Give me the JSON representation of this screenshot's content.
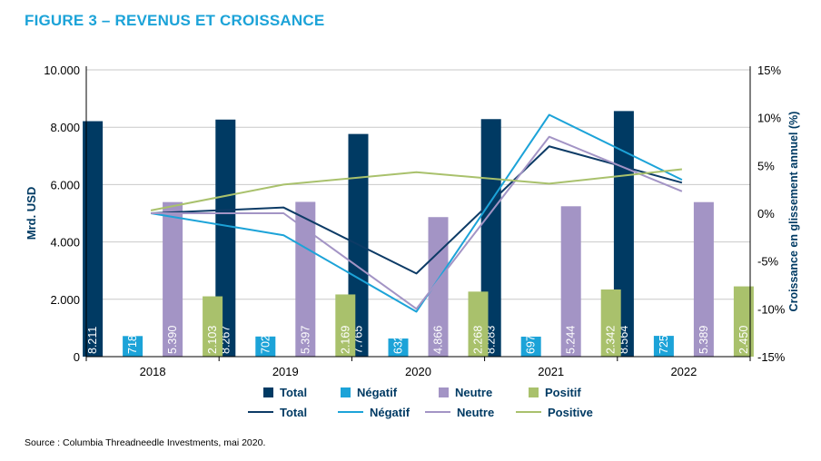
{
  "figure": {
    "title": "FIGURE 3 – REVENUS ET CROISSANCE",
    "source": "Source : Columbia Threadneedle Investments, mai 2020."
  },
  "chart_data": {
    "type": "bar",
    "categories": [
      "2018",
      "2019",
      "2020",
      "2021",
      "2022"
    ],
    "ylabel": "Mrd. USD",
    "ylim": [
      0,
      10000
    ],
    "y_ticks": [
      "0",
      "2.000",
      "4.000",
      "6.000",
      "8.000",
      "10.000"
    ],
    "y2label": "Croissance en glissement annuel (%)",
    "y2lim": [
      -15,
      15
    ],
    "y2_ticks": [
      "-15%",
      "-10%",
      "-5%",
      "0%",
      "5%",
      "10%",
      "15%"
    ],
    "bar_series": [
      {
        "name": "Total",
        "color": "#003a63",
        "values": [
          8211,
          8267,
          7765,
          8283,
          8564
        ],
        "labels": [
          "8.211",
          "8.267",
          "7.765",
          "8.283",
          "8.564"
        ]
      },
      {
        "name": "Négatif",
        "color": "#1ca3d8",
        "values": [
          718,
          702,
          632,
          697,
          725
        ],
        "labels": [
          "718",
          "702",
          "632",
          "697",
          "725"
        ]
      },
      {
        "name": "Neutre",
        "color": "#a394c5",
        "values": [
          5390,
          5397,
          4866,
          5244,
          5389
        ],
        "labels": [
          "5.390",
          "5.397",
          "4.866",
          "5.244",
          "5.389"
        ]
      },
      {
        "name": "Positif",
        "color": "#a9c16c",
        "values": [
          2103,
          2169,
          2268,
          2342,
          2450
        ],
        "labels": [
          "2.103",
          "2.169",
          "2.268",
          "2.342",
          "2.450"
        ]
      }
    ],
    "line_series": [
      {
        "name": "Total",
        "color": "#0d3b66",
        "values": [
          0,
          0.6,
          -6.3,
          7.0,
          3.2
        ]
      },
      {
        "name": "Négatif",
        "color": "#1ca3d8",
        "values": [
          0,
          -2.3,
          -10.3,
          10.3,
          3.5
        ]
      },
      {
        "name": "Neutre",
        "color": "#a394c5",
        "values": [
          0,
          0,
          -10.0,
          8.0,
          2.3
        ]
      },
      {
        "name": "Positive",
        "color": "#a9c16c",
        "values": [
          0.3,
          3.0,
          4.3,
          3.1,
          4.6
        ]
      }
    ],
    "grid": true,
    "legend": "bottom"
  }
}
